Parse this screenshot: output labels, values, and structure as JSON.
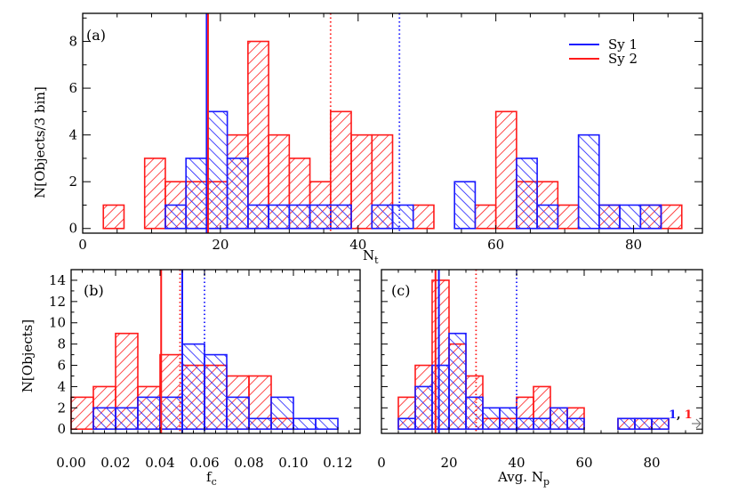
{
  "colors": {
    "sy1": "#1a1aff",
    "sy2": "#ff1a1a",
    "axis": "#000000",
    "arrow": "#777777"
  },
  "legend": {
    "placement": "top-right",
    "entries": [
      "Sy 1",
      "Sy 2"
    ]
  },
  "chart_data": [
    {
      "type": "histogram",
      "panel_label": "(a)",
      "xlabel": "N_t",
      "ylabel": "N[Objects/3 bin]",
      "xlim": [
        0,
        90
      ],
      "ylim": [
        -0.2,
        9.2
      ],
      "xticks": [
        0,
        20,
        40,
        60,
        80
      ],
      "yticks": [
        0,
        2,
        4,
        6,
        8
      ],
      "xtick_labels": [
        "0",
        "20",
        "40",
        "60",
        "80"
      ],
      "ytick_labels": [
        "0",
        "2",
        "4",
        "6",
        "8"
      ],
      "series": [
        {
          "name": "Sy 1",
          "bins": [
            [
              12,
              15,
              1
            ],
            [
              15,
              18,
              3
            ],
            [
              18,
              21,
              5
            ],
            [
              21,
              24,
              3
            ],
            [
              24,
              27,
              1
            ],
            [
              27,
              30,
              1
            ],
            [
              30,
              33,
              1
            ],
            [
              33,
              36,
              1
            ],
            [
              36,
              39,
              1
            ],
            [
              39,
              42,
              0
            ],
            [
              42,
              45,
              1
            ],
            [
              45,
              48,
              1
            ],
            [
              48,
              51,
              0
            ],
            [
              51,
              54,
              0
            ],
            [
              54,
              57,
              2
            ],
            [
              57,
              60,
              0
            ],
            [
              60,
              63,
              0
            ],
            [
              63,
              66,
              3
            ],
            [
              66,
              69,
              1
            ],
            [
              69,
              72,
              0
            ],
            [
              72,
              75,
              4
            ],
            [
              75,
              78,
              1
            ],
            [
              78,
              81,
              1
            ],
            [
              81,
              84,
              1
            ]
          ]
        },
        {
          "name": "Sy 2",
          "bins": [
            [
              3,
              6,
              1
            ],
            [
              6,
              9,
              0
            ],
            [
              9,
              12,
              3
            ],
            [
              12,
              15,
              2
            ],
            [
              15,
              18,
              2
            ],
            [
              18,
              21,
              2
            ],
            [
              21,
              24,
              4
            ],
            [
              24,
              27,
              8
            ],
            [
              27,
              30,
              4
            ],
            [
              30,
              33,
              3
            ],
            [
              33,
              36,
              2
            ],
            [
              36,
              39,
              5
            ],
            [
              39,
              42,
              4
            ],
            [
              42,
              45,
              4
            ],
            [
              45,
              48,
              0
            ],
            [
              48,
              51,
              1
            ],
            [
              51,
              54,
              0
            ],
            [
              54,
              57,
              0
            ],
            [
              57,
              60,
              1
            ],
            [
              60,
              63,
              5
            ],
            [
              63,
              66,
              2
            ],
            [
              66,
              69,
              2
            ],
            [
              69,
              72,
              1
            ],
            [
              72,
              75,
              0
            ],
            [
              75,
              78,
              1
            ],
            [
              78,
              81,
              0
            ],
            [
              81,
              84,
              1
            ],
            [
              84,
              87,
              1
            ]
          ]
        }
      ],
      "lines": [
        {
          "series": "Sy 1",
          "style": "solid",
          "x": 18
        },
        {
          "series": "Sy 2",
          "style": "solid",
          "x": 18.2
        },
        {
          "series": "Sy 2",
          "style": "dotted",
          "x": 36
        },
        {
          "series": "Sy 1",
          "style": "dotted",
          "x": 46
        }
      ]
    },
    {
      "type": "histogram",
      "panel_label": "(b)",
      "xlabel": "f_c",
      "ylabel": "N[Objects]",
      "xlim": [
        0,
        0.13
      ],
      "ylim": [
        -0.4,
        15
      ],
      "xticks": [
        0,
        0.02,
        0.04,
        0.06,
        0.08,
        0.1,
        0.12
      ],
      "yticks": [
        0,
        2,
        4,
        6,
        8,
        10,
        12,
        14
      ],
      "xtick_labels": [
        "0.00",
        "0.02",
        "0.04",
        "0.06",
        "0.08",
        "0.10",
        "0.12"
      ],
      "ytick_labels": [
        "0",
        "2",
        "4",
        "6",
        "8",
        "10",
        "12",
        "14"
      ],
      "series": [
        {
          "name": "Sy 1",
          "bins": [
            [
              0.01,
              0.02,
              2
            ],
            [
              0.02,
              0.03,
              2
            ],
            [
              0.03,
              0.04,
              3
            ],
            [
              0.04,
              0.05,
              3
            ],
            [
              0.05,
              0.06,
              8
            ],
            [
              0.06,
              0.07,
              7
            ],
            [
              0.07,
              0.08,
              3
            ],
            [
              0.08,
              0.09,
              1
            ],
            [
              0.09,
              0.1,
              3
            ],
            [
              0.1,
              0.11,
              1
            ],
            [
              0.11,
              0.12,
              1
            ]
          ]
        },
        {
          "name": "Sy 2",
          "bins": [
            [
              0,
              0.01,
              3
            ],
            [
              0.01,
              0.02,
              4
            ],
            [
              0.02,
              0.03,
              9
            ],
            [
              0.03,
              0.04,
              4
            ],
            [
              0.04,
              0.05,
              7
            ],
            [
              0.05,
              0.06,
              6
            ],
            [
              0.06,
              0.07,
              6
            ],
            [
              0.07,
              0.08,
              5
            ],
            [
              0.08,
              0.09,
              5
            ],
            [
              0.09,
              0.1,
              1
            ]
          ]
        }
      ],
      "lines": [
        {
          "series": "Sy 2",
          "style": "solid",
          "x": 0.0405
        },
        {
          "series": "Sy 1",
          "style": "solid",
          "x": 0.05
        },
        {
          "series": "Sy 2",
          "style": "dotted",
          "x": 0.049
        },
        {
          "series": "Sy 1",
          "style": "dotted",
          "x": 0.06
        }
      ]
    },
    {
      "type": "histogram",
      "panel_label": "(c)",
      "xlabel": "Avg. N_p",
      "ylabel": "",
      "xlim": [
        0,
        95
      ],
      "ylim": [
        -0.4,
        15
      ],
      "xticks": [
        0,
        20,
        40,
        60,
        80
      ],
      "yticks": [
        0,
        2,
        4,
        6,
        8,
        10,
        12,
        14
      ],
      "xtick_labels": [
        "0",
        "20",
        "40",
        "60",
        "80"
      ],
      "ytick_labels": [],
      "series": [
        {
          "name": "Sy 1",
          "bins": [
            [
              5,
              10,
              1
            ],
            [
              10,
              15,
              4
            ],
            [
              15,
              20,
              6
            ],
            [
              20,
              25,
              9
            ],
            [
              25,
              30,
              3
            ],
            [
              30,
              35,
              2
            ],
            [
              35,
              40,
              2
            ],
            [
              40,
              45,
              1
            ],
            [
              45,
              50,
              1
            ],
            [
              50,
              55,
              2
            ],
            [
              55,
              60,
              1
            ],
            [
              70,
              75,
              1
            ],
            [
              75,
              80,
              1
            ],
            [
              80,
              85,
              1
            ]
          ]
        },
        {
          "name": "Sy 2",
          "bins": [
            [
              5,
              10,
              3
            ],
            [
              10,
              15,
              6
            ],
            [
              15,
              20,
              14
            ],
            [
              20,
              25,
              8
            ],
            [
              25,
              30,
              5
            ],
            [
              30,
              35,
              1
            ],
            [
              35,
              40,
              1
            ],
            [
              40,
              45,
              3
            ],
            [
              45,
              50,
              4
            ],
            [
              50,
              55,
              2
            ],
            [
              55,
              60,
              2
            ],
            [
              70,
              75,
              1
            ],
            [
              75,
              80,
              1
            ],
            [
              80,
              85,
              1
            ]
          ]
        }
      ],
      "lines": [
        {
          "series": "Sy 2",
          "style": "solid",
          "x": 16
        },
        {
          "series": "Sy 1",
          "style": "solid",
          "x": 17
        },
        {
          "series": "Sy 2",
          "style": "dotted",
          "x": 28
        },
        {
          "series": "Sy 1",
          "style": "dotted",
          "x": 40
        }
      ],
      "annotation": {
        "sy1_count": "1",
        "separator": ",",
        "sy2_count": "1"
      }
    }
  ]
}
